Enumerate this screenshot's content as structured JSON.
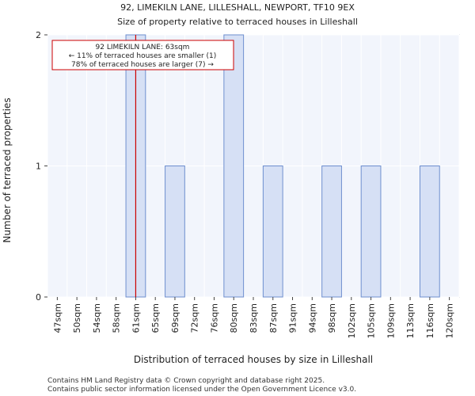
{
  "chart_data": {
    "type": "bar",
    "title": "92, LIMEKILN LANE, LILLESHALL, NEWPORT, TF10 9EX",
    "subtitle": "Size of property relative to terraced houses in Lilleshall",
    "xlabel": "Distribution of terraced houses by size in Lilleshall",
    "ylabel": "Number of terraced properties",
    "ylim": [
      0,
      2
    ],
    "yticks": [
      "0",
      "1",
      "2"
    ],
    "categories": [
      "47sqm",
      "50sqm",
      "54sqm",
      "58sqm",
      "61sqm",
      "65sqm",
      "69sqm",
      "72sqm",
      "76sqm",
      "80sqm",
      "83sqm",
      "87sqm",
      "91sqm",
      "94sqm",
      "98sqm",
      "102sqm",
      "105sqm",
      "109sqm",
      "113sqm",
      "116sqm",
      "120sqm"
    ],
    "values": [
      0,
      0,
      0,
      0,
      2,
      0,
      1,
      0,
      0,
      2,
      0,
      1,
      0,
      0,
      1,
      0,
      1,
      0,
      0,
      1,
      0
    ],
    "marker_value": 63,
    "marker_label": "92 LIMEKILN LANE: 63sqm",
    "marker_line2": "← 11% of terraced houses are smaller (1)",
    "marker_line3": "78% of terraced houses are larger (7) →",
    "bar_color": "#d6e0f5",
    "bar_edge": "#6f8fcf",
    "marker_color": "#cc0000"
  },
  "footer": {
    "line1": "Contains HM Land Registry data © Crown copyright and database right 2025.",
    "line2": "Contains public sector information licensed under the Open Government Licence v3.0."
  }
}
